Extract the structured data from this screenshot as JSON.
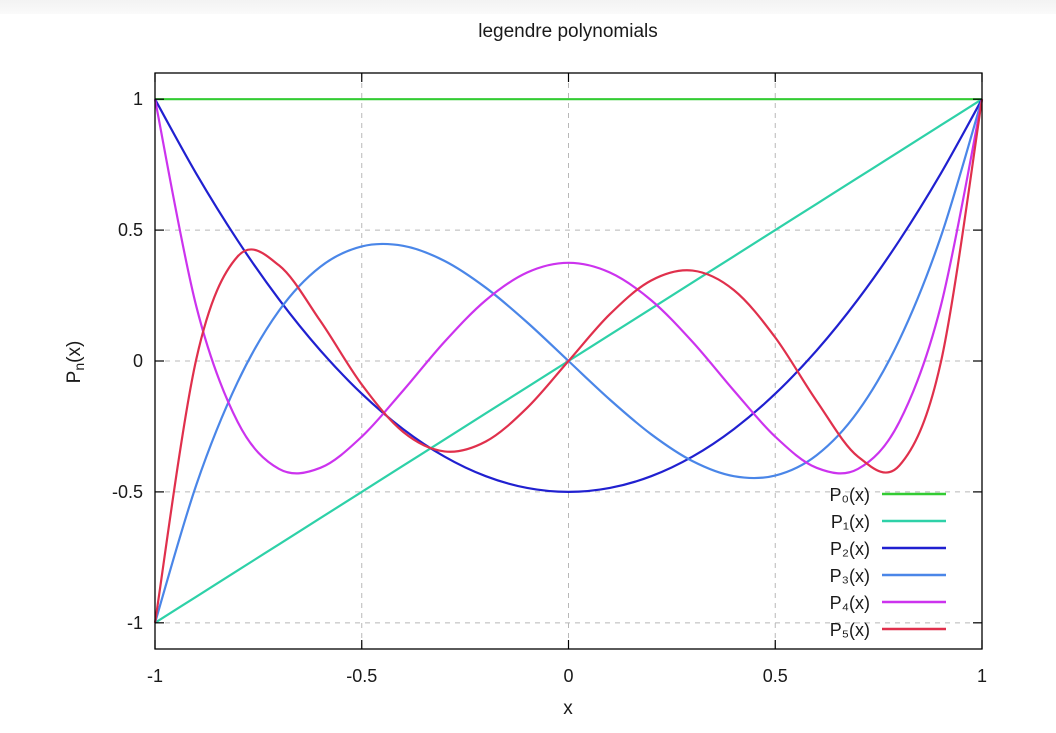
{
  "chart_data": {
    "type": "line",
    "title": "legendre polynomials",
    "xlabel": "x",
    "ylabel": "Pn(x)",
    "xlim": [
      -1,
      1
    ],
    "ylim": [
      -1.1,
      1.1
    ],
    "xticks": [
      -1,
      -0.5,
      0,
      0.5,
      1
    ],
    "xtick_labels": [
      "-1",
      "-0.5",
      "0",
      "0.5",
      "1"
    ],
    "yticks": [
      1,
      0.5,
      0,
      -0.5,
      -1
    ],
    "ytick_labels": [
      "1",
      "0.5",
      "0",
      "-0.5",
      "-1"
    ],
    "grid": true,
    "legend_position": "bottom-right",
    "x": [
      -1,
      -0.9,
      -0.8,
      -0.7,
      -0.6,
      -0.5,
      -0.4,
      -0.3,
      -0.2,
      -0.1,
      0,
      0.1,
      0.2,
      0.3,
      0.4,
      0.5,
      0.6,
      0.7,
      0.8,
      0.9,
      1
    ],
    "series": [
      {
        "name": "P0(x)",
        "label": "P₀(x)",
        "color": "#33cc33",
        "values": [
          1,
          1,
          1,
          1,
          1,
          1,
          1,
          1,
          1,
          1,
          1,
          1,
          1,
          1,
          1,
          1,
          1,
          1,
          1,
          1,
          1
        ]
      },
      {
        "name": "P1(x)",
        "label": "P₁(x)",
        "color": "#2ed1a8",
        "values": [
          -1,
          -0.9,
          -0.8,
          -0.7,
          -0.6,
          -0.5,
          -0.4,
          -0.3,
          -0.2,
          -0.1,
          0,
          0.1,
          0.2,
          0.3,
          0.4,
          0.5,
          0.6,
          0.7,
          0.8,
          0.9,
          1
        ]
      },
      {
        "name": "P2(x)",
        "label": "P₂(x)",
        "color": "#2020d0",
        "values": [
          1,
          0.715,
          0.46,
          0.235,
          0.04,
          -0.125,
          -0.26,
          -0.365,
          -0.44,
          -0.485,
          -0.5,
          -0.485,
          -0.44,
          -0.365,
          -0.26,
          -0.125,
          0.04,
          0.235,
          0.46,
          0.715,
          1
        ]
      },
      {
        "name": "P3(x)",
        "label": "P₃(x)",
        "color": "#4a86e8",
        "values": [
          -1,
          -0.4725,
          -0.08,
          0.1925,
          0.36,
          0.4375,
          0.44,
          0.3825,
          0.28,
          0.1475,
          0,
          -0.1475,
          -0.28,
          -0.3825,
          -0.44,
          -0.4375,
          -0.36,
          -0.1925,
          0.08,
          0.4725,
          1
        ]
      },
      {
        "name": "P4(x)",
        "label": "P₄(x)",
        "color": "#cc33ee",
        "values": [
          1,
          0.2079,
          -0.233,
          -0.4121,
          -0.408,
          -0.2891,
          -0.113,
          0.0729,
          0.232,
          0.3379,
          0.375,
          0.3379,
          0.232,
          0.0729,
          -0.113,
          -0.2891,
          -0.408,
          -0.4121,
          -0.233,
          0.2079,
          1
        ]
      },
      {
        "name": "P5(x)",
        "label": "P₅(x)",
        "color": "#e0304c",
        "values": [
          -1,
          0.0083,
          0.3995,
          0.3651,
          0.1526,
          -0.0898,
          -0.2706,
          -0.3453,
          -0.3075,
          -0.1788,
          0,
          0.1788,
          0.3075,
          0.3453,
          0.2706,
          0.0898,
          -0.1526,
          -0.3651,
          -0.3995,
          -0.0083,
          1
        ]
      }
    ]
  }
}
